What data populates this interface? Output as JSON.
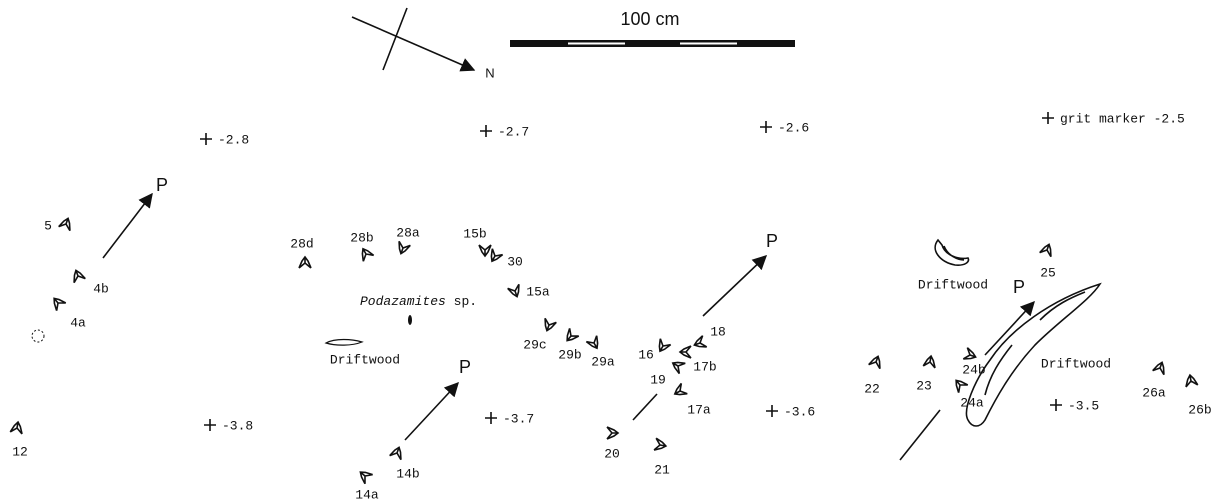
{
  "scale": {
    "label": "100 cm"
  },
  "north": {
    "label": "N"
  },
  "elevation_markers": [
    {
      "label": "-2.8"
    },
    {
      "label": "-2.7"
    },
    {
      "label": "-2.6"
    },
    {
      "label": "grit marker -2.5"
    },
    {
      "label": "-3.8"
    },
    {
      "label": "-3.7"
    },
    {
      "label": "-3.6"
    },
    {
      "label": "-3.5"
    }
  ],
  "footprints": [
    {
      "label": "5"
    },
    {
      "label": "4b"
    },
    {
      "label": "4a"
    },
    {
      "label": "12"
    },
    {
      "label": "28d"
    },
    {
      "label": "28b"
    },
    {
      "label": "28a"
    },
    {
      "label": "15b"
    },
    {
      "label": "30"
    },
    {
      "label": "15a"
    },
    {
      "label": "29c"
    },
    {
      "label": "29b"
    },
    {
      "label": "29a"
    },
    {
      "label": "16"
    },
    {
      "label": "17b"
    },
    {
      "label": "18"
    },
    {
      "label": "19"
    },
    {
      "label": "17a"
    },
    {
      "label": "20"
    },
    {
      "label": "21"
    },
    {
      "label": "14b"
    },
    {
      "label": "14a"
    },
    {
      "label": "22"
    },
    {
      "label": "23"
    },
    {
      "label": "24b"
    },
    {
      "label": "24a"
    },
    {
      "label": "25"
    },
    {
      "label": "26a"
    },
    {
      "label": "26b"
    }
  ],
  "direction_arrows": [
    {
      "label": "P"
    },
    {
      "label": "P"
    },
    {
      "label": "P"
    },
    {
      "label": "P"
    }
  ],
  "driftwood": [
    {
      "label": "Driftwood"
    },
    {
      "label": "Driftwood"
    },
    {
      "label": "Driftwood"
    }
  ],
  "plant": {
    "genus": "Podazamites",
    "rank": "sp."
  }
}
